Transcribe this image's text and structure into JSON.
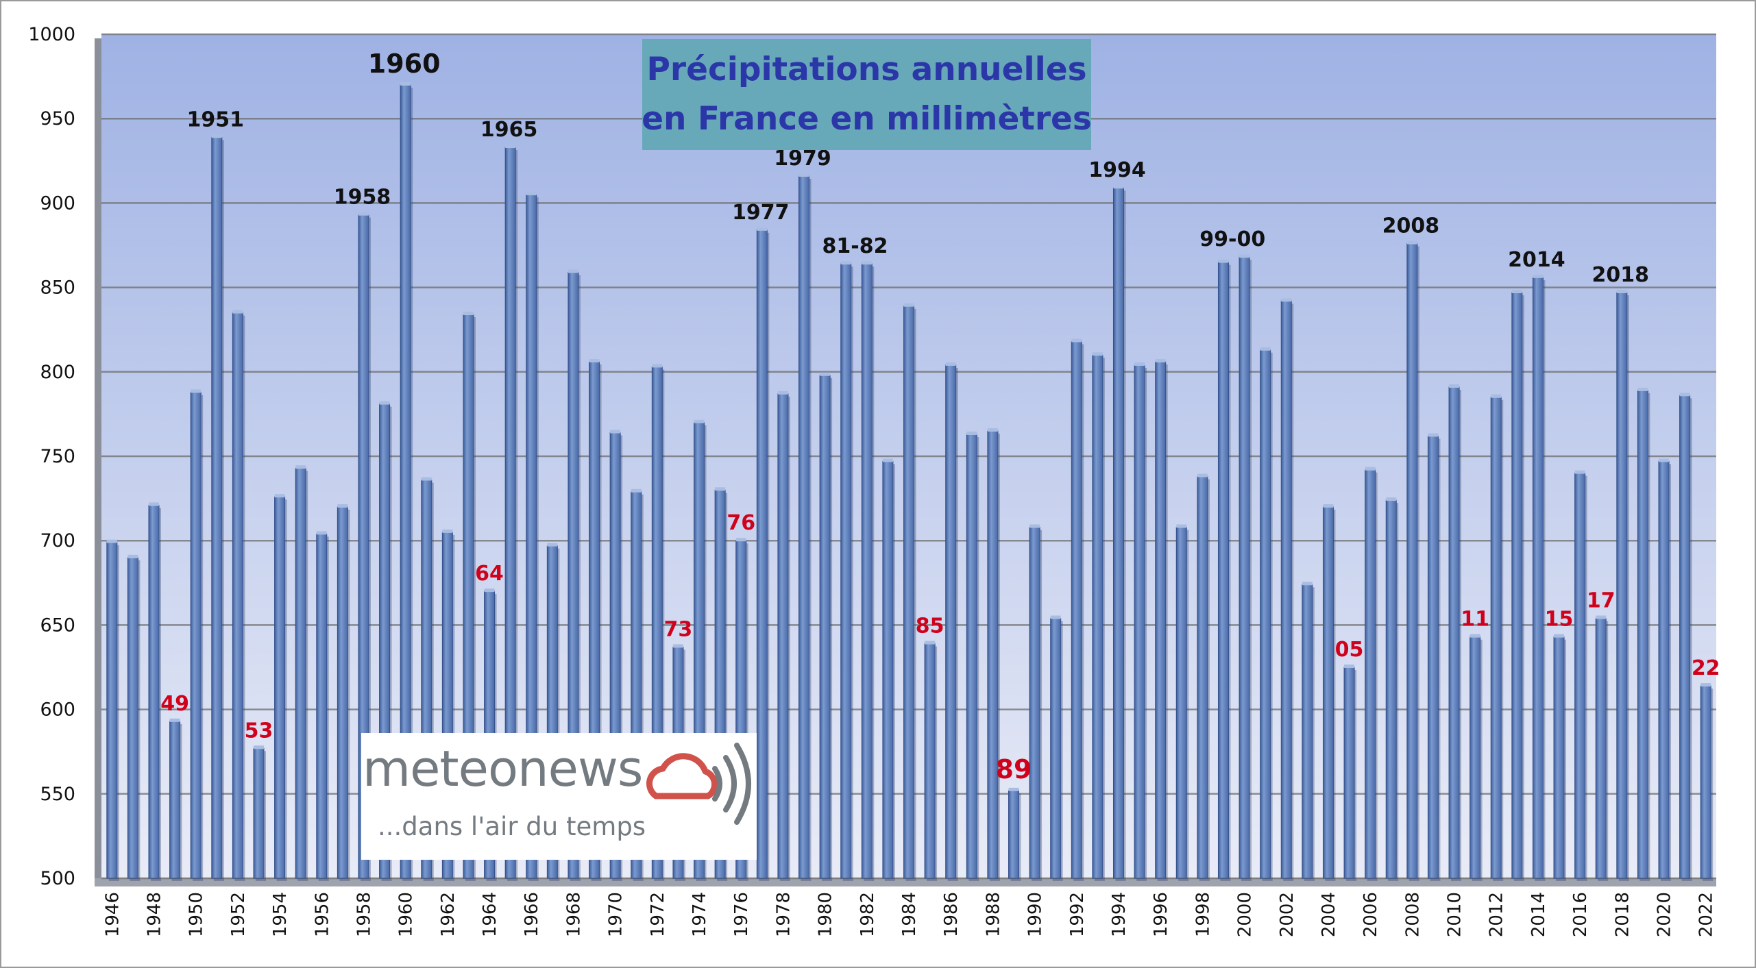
{
  "chart_data": {
    "type": "bar",
    "title_lines": [
      "Précipitations annuelles",
      "en France en millimètres"
    ],
    "ylim": [
      500,
      1000
    ],
    "yticks": [
      500,
      550,
      600,
      650,
      700,
      750,
      800,
      850,
      900,
      950,
      1000
    ],
    "grid": true,
    "xtick_labels": [
      "1946",
      "1948",
      "1950",
      "1952",
      "1954",
      "1956",
      "1958",
      "1960",
      "1962",
      "1964",
      "1966",
      "1968",
      "1970",
      "1972",
      "1974",
      "1976",
      "1978",
      "1980",
      "1982",
      "1984",
      "1986",
      "1988",
      "1990",
      "1992",
      "1994",
      "1996",
      "1998",
      "2000",
      "2002",
      "2004",
      "2006",
      "2008",
      "2010",
      "2012",
      "2014",
      "2016",
      "2018",
      "2020",
      "2022"
    ],
    "categories": [
      "1946",
      "1947",
      "1948",
      "1949",
      "1950",
      "1951",
      "1952",
      "1953",
      "1954",
      "1955",
      "1956",
      "1957",
      "1958",
      "1959",
      "1960",
      "1961",
      "1962",
      "1963",
      "1964",
      "1965",
      "1966",
      "1967",
      "1968",
      "1969",
      "1970",
      "1971",
      "1972",
      "1973",
      "1974",
      "1975",
      "1976",
      "1977",
      "1978",
      "1979",
      "1980",
      "1981",
      "1982",
      "1983",
      "1984",
      "1985",
      "1986",
      "1987",
      "1988",
      "1989",
      "1990",
      "1991",
      "1992",
      "1993",
      "1994",
      "1995",
      "1996",
      "1997",
      "1998",
      "1999",
      "2000",
      "2001",
      "2002",
      "2003",
      "2004",
      "2005",
      "2006",
      "2007",
      "2008",
      "2009",
      "2010",
      "2011",
      "2012",
      "2013",
      "2014",
      "2015",
      "2016",
      "2017",
      "2018",
      "2019",
      "2020",
      "2021",
      "2022"
    ],
    "values": [
      699,
      690,
      721,
      593,
      788,
      939,
      835,
      577,
      726,
      743,
      704,
      720,
      893,
      781,
      970,
      736,
      705,
      834,
      670,
      933,
      905,
      697,
      859,
      806,
      764,
      729,
      803,
      637,
      770,
      730,
      700,
      884,
      787,
      916,
      798,
      864,
      864,
      747,
      839,
      639,
      804,
      763,
      765,
      552,
      708,
      654,
      818,
      810,
      909,
      804,
      806,
      708,
      738,
      865,
      868,
      813,
      842,
      674,
      720,
      625,
      742,
      724,
      876,
      762,
      791,
      643,
      785,
      847,
      856,
      643,
      740,
      654,
      847,
      789,
      747,
      786,
      614
    ],
    "annotations_wet": [
      {
        "label": "1951",
        "year": "1951"
      },
      {
        "label": "1958",
        "year": "1958"
      },
      {
        "label": "1960",
        "year": "1960"
      },
      {
        "label": "1965",
        "year": "1965"
      },
      {
        "label": "1977",
        "year": "1977"
      },
      {
        "label": "1979",
        "year": "1979"
      },
      {
        "label": "81-82",
        "year": "1981-1982"
      },
      {
        "label": "1994",
        "year": "1994"
      },
      {
        "label": "99-00",
        "year": "1999-2000"
      },
      {
        "label": "2008",
        "year": "2008"
      },
      {
        "label": "2014",
        "year": "2014"
      },
      {
        "label": "2018",
        "year": "2018"
      }
    ],
    "annotations_dry": [
      {
        "label": "49",
        "year": "1949"
      },
      {
        "label": "53",
        "year": "1953"
      },
      {
        "label": "64",
        "year": "1964"
      },
      {
        "label": "73",
        "year": "1973"
      },
      {
        "label": "76",
        "year": "1976"
      },
      {
        "label": "85",
        "year": "1985"
      },
      {
        "label": "89",
        "year": "1989"
      },
      {
        "label": "05",
        "year": "2005"
      },
      {
        "label": "11",
        "year": "2011"
      },
      {
        "label": "15",
        "year": "2015"
      },
      {
        "label": "17",
        "year": "2017"
      },
      {
        "label": "22",
        "year": "2022"
      }
    ],
    "colors": {
      "bar": "#4f72b0",
      "bar_light": "#7b9ad0",
      "bar_dark": "#2f4f8a",
      "wet_label": "#111111",
      "dry_label": "#d0021b",
      "bg_top": "#9fb2e4",
      "bg_bottom": "#e9ecf7",
      "grid": "#6e6e6e",
      "title_bg": "#68a9b9",
      "title_text": "#2b36a8"
    }
  },
  "logo": {
    "brand": "meteonews",
    "tagline": "...dans l'air du temps",
    "icon": "cloud-with-waves-icon"
  }
}
